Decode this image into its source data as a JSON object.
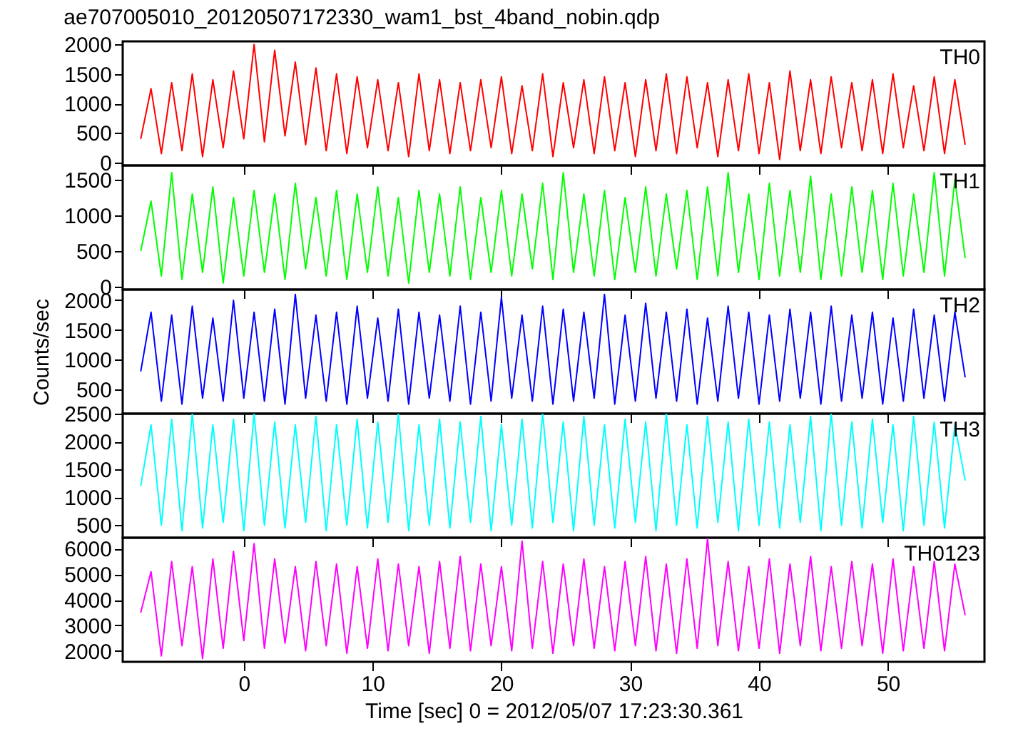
{
  "chart_data": [
    {
      "type": "line",
      "title": "ae707005010_20120507172330_wam1_bst_4band_nobin.qdp",
      "x": [
        -8,
        -7.2,
        -6.4,
        -5.6,
        -4.8,
        -4,
        -3.2,
        -2.4,
        -1.6,
        -0.8,
        0,
        0.8,
        1.6,
        2.4,
        3.2,
        4,
        4.8,
        5.6,
        6.4,
        7.2,
        8,
        8.8,
        9.6,
        10.4,
        11.2,
        12,
        12.8,
        13.6,
        14.4,
        15.2,
        16,
        16.8,
        17.6,
        18.4,
        19.2,
        20,
        20.8,
        21.6,
        22.4,
        23.2,
        24,
        24.8,
        25.6,
        26.4,
        27.2,
        28,
        28.8,
        29.6,
        30.4,
        31.2,
        32,
        32.8,
        33.6,
        34.4,
        35.2,
        36,
        36.8,
        37.6,
        38.4,
        39.2,
        40,
        40.8,
        41.6,
        42.4,
        43.2,
        44,
        44.8,
        45.6,
        46.4,
        47.2,
        48,
        48.8,
        49.6,
        50.4,
        51.2,
        52,
        52.8,
        53.6,
        54.4,
        55.2,
        56
      ],
      "series": [
        {
          "name": "TH0",
          "color": "#ff0000",
          "values": [
            400,
            1250,
            150,
            1350,
            200,
            1500,
            100,
            1400,
            250,
            1550,
            400,
            2000,
            350,
            1900,
            450,
            1700,
            300,
            1600,
            200,
            1500,
            150,
            1450,
            250,
            1400,
            200,
            1350,
            100,
            1500,
            200,
            1400,
            150,
            1350,
            200,
            1400,
            250,
            1450,
            150,
            1300,
            200,
            1500,
            100,
            1350,
            250,
            1400,
            150,
            1450,
            200,
            1350,
            100,
            1400,
            200,
            1500,
            150,
            1450,
            250,
            1350,
            100,
            1400,
            200,
            1500,
            150,
            1350,
            50,
            1550,
            200,
            1400,
            150,
            1450,
            250,
            1350,
            200,
            1400,
            150,
            1500,
            250,
            1300,
            200,
            1450,
            150,
            1400,
            300
          ]
        }
      ],
      "xlim": [
        -9.4,
        57.5
      ],
      "xticks": [
        0,
        10,
        20,
        30,
        40,
        50
      ],
      "ylim": [
        -50,
        2050
      ],
      "yticks": [
        0,
        500,
        1000,
        1500,
        2000
      ],
      "tick_labels": "y",
      "grid": false
    },
    {
      "type": "line",
      "x": [
        -8,
        -7.2,
        -6.4,
        -5.6,
        -4.8,
        -4,
        -3.2,
        -2.4,
        -1.6,
        -0.8,
        0,
        0.8,
        1.6,
        2.4,
        3.2,
        4,
        4.8,
        5.6,
        6.4,
        7.2,
        8,
        8.8,
        9.6,
        10.4,
        11.2,
        12,
        12.8,
        13.6,
        14.4,
        15.2,
        16,
        16.8,
        17.6,
        18.4,
        19.2,
        20,
        20.8,
        21.6,
        22.4,
        23.2,
        24,
        24.8,
        25.6,
        26.4,
        27.2,
        28,
        28.8,
        29.6,
        30.4,
        31.2,
        32,
        32.8,
        33.6,
        34.4,
        35.2,
        36,
        36.8,
        37.6,
        38.4,
        39.2,
        40,
        40.8,
        41.6,
        42.4,
        43.2,
        44,
        44.8,
        45.6,
        46.4,
        47.2,
        48,
        48.8,
        49.6,
        50.4,
        51.2,
        52,
        52.8,
        53.6,
        54.4,
        55.2,
        56
      ],
      "series": [
        {
          "name": "TH1",
          "color": "#00ff00",
          "values": [
            500,
            1200,
            150,
            1600,
            100,
            1300,
            200,
            1400,
            50,
            1250,
            150,
            1350,
            200,
            1300,
            100,
            1450,
            250,
            1250,
            150,
            1350,
            100,
            1300,
            200,
            1400,
            150,
            1250,
            50,
            1350,
            200,
            1300,
            150,
            1400,
            100,
            1250,
            200,
            1350,
            150,
            1300,
            250,
            1450,
            100,
            1600,
            200,
            1300,
            150,
            1350,
            100,
            1250,
            200,
            1400,
            150,
            1300,
            250,
            1350,
            100,
            1400,
            150,
            1600,
            200,
            1300,
            100,
            1450,
            150,
            1350,
            200,
            1550,
            100,
            1300,
            150,
            1400,
            200,
            1350,
            100,
            1450,
            150,
            1300,
            200,
            1600,
            150,
            1500,
            400
          ]
        }
      ],
      "xlim": [
        -9.4,
        57.5
      ],
      "xticks": [
        0,
        10,
        20,
        30,
        40,
        50
      ],
      "ylim": [
        -40,
        1700
      ],
      "yticks": [
        0,
        500,
        1000,
        1500
      ],
      "tick_labels": "y",
      "grid": false
    },
    {
      "type": "line",
      "ylabel": "Counts/sec",
      "x": [
        -8,
        -7.2,
        -6.4,
        -5.6,
        -4.8,
        -4,
        -3.2,
        -2.4,
        -1.6,
        -0.8,
        0,
        0.8,
        1.6,
        2.4,
        3.2,
        4,
        4.8,
        5.6,
        6.4,
        7.2,
        8,
        8.8,
        9.6,
        10.4,
        11.2,
        12,
        12.8,
        13.6,
        14.4,
        15.2,
        16,
        16.8,
        17.6,
        18.4,
        19.2,
        20,
        20.8,
        21.6,
        22.4,
        23.2,
        24,
        24.8,
        25.6,
        26.4,
        27.2,
        28,
        28.8,
        29.6,
        30.4,
        31.2,
        32,
        32.8,
        33.6,
        34.4,
        35.2,
        36,
        36.8,
        37.6,
        38.4,
        39.2,
        40,
        40.8,
        41.6,
        42.4,
        43.2,
        44,
        44.8,
        45.6,
        46.4,
        47.2,
        48,
        48.8,
        49.6,
        50.4,
        51.2,
        52,
        52.8,
        53.6,
        54.4,
        55.2,
        56
      ],
      "series": [
        {
          "name": "TH2",
          "color": "#0000ff",
          "values": [
            800,
            1800,
            300,
            1750,
            250,
            1900,
            350,
            1700,
            300,
            2000,
            350,
            1800,
            300,
            1850,
            250,
            2100,
            350,
            1750,
            300,
            1800,
            250,
            1900,
            350,
            1700,
            300,
            1850,
            250,
            1800,
            350,
            1750,
            300,
            1900,
            250,
            1800,
            300,
            2050,
            350,
            1750,
            300,
            1900,
            250,
            1850,
            300,
            1800,
            350,
            2100,
            250,
            1750,
            300,
            1950,
            350,
            1800,
            300,
            1850,
            250,
            1700,
            300,
            1900,
            350,
            1800,
            250,
            1750,
            300,
            1850,
            350,
            1800,
            250,
            1900,
            300,
            1750,
            350,
            1800,
            250,
            1700,
            300,
            1850,
            350,
            1750,
            300,
            1800,
            700
          ]
        }
      ],
      "xlim": [
        -9.4,
        57.5
      ],
      "xticks": [
        0,
        10,
        20,
        30,
        40,
        50
      ],
      "ylim": [
        90,
        2180
      ],
      "yticks": [
        500,
        1000,
        1500,
        2000
      ],
      "tick_labels": "y",
      "grid": false
    },
    {
      "type": "line",
      "x": [
        -8,
        -7.2,
        -6.4,
        -5.6,
        -4.8,
        -4,
        -3.2,
        -2.4,
        -1.6,
        -0.8,
        0,
        0.8,
        1.6,
        2.4,
        3.2,
        4,
        4.8,
        5.6,
        6.4,
        7.2,
        8,
        8.8,
        9.6,
        10.4,
        11.2,
        12,
        12.8,
        13.6,
        14.4,
        15.2,
        16,
        16.8,
        17.6,
        18.4,
        19.2,
        20,
        20.8,
        21.6,
        22.4,
        23.2,
        24,
        24.8,
        25.6,
        26.4,
        27.2,
        28,
        28.8,
        29.6,
        30.4,
        31.2,
        32,
        32.8,
        33.6,
        34.4,
        35.2,
        36,
        36.8,
        37.6,
        38.4,
        39.2,
        40,
        40.8,
        41.6,
        42.4,
        43.2,
        44,
        44.8,
        45.6,
        46.4,
        47.2,
        48,
        48.8,
        49.6,
        50.4,
        51.2,
        52,
        52.8,
        53.6,
        54.4,
        55.2,
        56
      ],
      "series": [
        {
          "name": "TH3",
          "color": "#00ffff",
          "values": [
            1200,
            2300,
            500,
            2400,
            400,
            2500,
            450,
            2300,
            550,
            2400,
            400,
            2500,
            500,
            2350,
            450,
            2300,
            550,
            2450,
            400,
            2300,
            500,
            2400,
            450,
            2350,
            550,
            2500,
            400,
            2300,
            500,
            2400,
            450,
            2350,
            550,
            2450,
            400,
            2300,
            500,
            2400,
            450,
            2500,
            550,
            2350,
            400,
            2450,
            500,
            2300,
            450,
            2400,
            550,
            2350,
            400,
            2500,
            500,
            2300,
            450,
            2450,
            550,
            2350,
            400,
            2400,
            500,
            2350,
            450,
            2300,
            550,
            2450,
            400,
            2500,
            500,
            2350,
            450,
            2400,
            550,
            2300,
            400,
            2450,
            500,
            2350,
            450,
            2300,
            1300
          ]
        }
      ],
      "xlim": [
        -9.4,
        57.5
      ],
      "xticks": [
        0,
        10,
        20,
        30,
        40,
        50
      ],
      "ylim": [
        275,
        2500
      ],
      "yticks": [
        500,
        1000,
        1500,
        2000,
        2500
      ],
      "tick_labels": "y",
      "grid": false
    },
    {
      "type": "line",
      "xlabel": "Time [sec] 0 = 2012/05/07 17:23:30.361",
      "x": [
        -8,
        -7.2,
        -6.4,
        -5.6,
        -4.8,
        -4,
        -3.2,
        -2.4,
        -1.6,
        -0.8,
        0,
        0.8,
        1.6,
        2.4,
        3.2,
        4,
        4.8,
        5.6,
        6.4,
        7.2,
        8,
        8.8,
        9.6,
        10.4,
        11.2,
        12,
        12.8,
        13.6,
        14.4,
        15.2,
        16,
        16.8,
        17.6,
        18.4,
        19.2,
        20,
        20.8,
        21.6,
        22.4,
        23.2,
        24,
        24.8,
        25.6,
        26.4,
        27.2,
        28,
        28.8,
        29.6,
        30.4,
        31.2,
        32,
        32.8,
        33.6,
        34.4,
        35.2,
        36,
        36.8,
        37.6,
        38.4,
        39.2,
        40,
        40.8,
        41.6,
        42.4,
        43.2,
        44,
        44.8,
        45.6,
        46.4,
        47.2,
        48,
        48.8,
        49.6,
        50.4,
        51.2,
        52,
        52.8,
        53.6,
        54.4,
        55.2,
        56
      ],
      "series": [
        {
          "name": "TH0123",
          "color": "#ff00ff",
          "values": [
            3500,
            5100,
            1800,
            5500,
            2200,
            5300,
            1700,
            5600,
            2100,
            5900,
            2400,
            6200,
            2100,
            5600,
            2300,
            5300,
            2000,
            5500,
            2200,
            5400,
            1900,
            5300,
            2100,
            5600,
            2000,
            5400,
            2200,
            5300,
            1900,
            5500,
            2100,
            5700,
            2000,
            5400,
            2200,
            5300,
            2000,
            6300,
            2100,
            5500,
            1900,
            5400,
            2200,
            5600,
            2100,
            5300,
            2000,
            5500,
            2200,
            5700,
            2000,
            5400,
            1900,
            5600,
            2100,
            6400,
            2200,
            5500,
            2000,
            5300,
            2100,
            5600,
            1900,
            5400,
            2200,
            5700,
            2000,
            5300,
            2100,
            5500,
            2200,
            5400,
            1900,
            5600,
            2000,
            5300,
            2100,
            5500,
            2000,
            5400,
            3400
          ]
        }
      ],
      "xlim": [
        -9.4,
        57.5
      ],
      "xticks": [
        0,
        10,
        20,
        30,
        40,
        50
      ],
      "ylim": [
        1570,
        6430
      ],
      "yticks": [
        2000,
        3000,
        4000,
        5000,
        6000
      ],
      "grid": false
    }
  ]
}
